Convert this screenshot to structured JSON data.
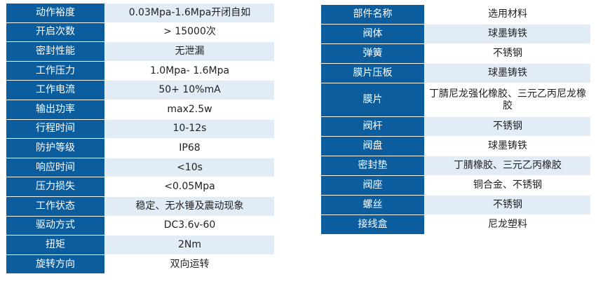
{
  "spec_table": {
    "rows": [
      {
        "key": "动作裕度",
        "value": "0.03Mpa-1.6Mpa开闭自如"
      },
      {
        "key": "开启次数",
        "value": "> 15000次"
      },
      {
        "key": "密封性能",
        "value": "无泄漏"
      },
      {
        "key": "工作压力",
        "value": "1.0Mpa- 1.6Mpa"
      },
      {
        "key": "工作电流",
        "value": "50+ 10%mA"
      },
      {
        "key": "输出功率",
        "value": "max2.5w"
      },
      {
        "key": "行程时间",
        "value": "10-12s"
      },
      {
        "key": "防护等级",
        "value": "IP68"
      },
      {
        "key": "响应时间",
        "value": "<10s"
      },
      {
        "key": "压力损失",
        "value": "<0.05Mpa"
      },
      {
        "key": "工作状态",
        "value": "稳定、无水锤及震动现象"
      },
      {
        "key": "驱动方式",
        "value": "DC3.6v-60"
      },
      {
        "key": "扭矩",
        "value": "2Nm"
      },
      {
        "key": "旋转方向",
        "value": "双向运转"
      }
    ]
  },
  "parts_table": {
    "header": {
      "key": "部件名称",
      "value": "选用材料"
    },
    "rows": [
      {
        "key": "阀体",
        "value": "球墨铸铁"
      },
      {
        "key": "弹簧",
        "value": "不锈钢"
      },
      {
        "key": "膜片压板",
        "value": "球墨铸铁"
      },
      {
        "key": "膜片",
        "value": "丁腈尼龙强化橡胶、三元乙丙尼龙橡胶"
      },
      {
        "key": "阀杆",
        "value": "不锈钢"
      },
      {
        "key": "阀盘",
        "value": "球墨铸铁"
      },
      {
        "key": "密封垫",
        "value": "丁腈橡胶、三元乙丙橡胶"
      },
      {
        "key": "阀座",
        "value": "铜合金、不锈钢"
      },
      {
        "key": "螺丝",
        "value": "不锈钢"
      },
      {
        "key": "接线盒",
        "value": "尼龙塑料"
      }
    ]
  },
  "colors": {
    "header_blue": "#0c5d9e",
    "alt_row": "#e2ecf6",
    "text": "#222222"
  }
}
